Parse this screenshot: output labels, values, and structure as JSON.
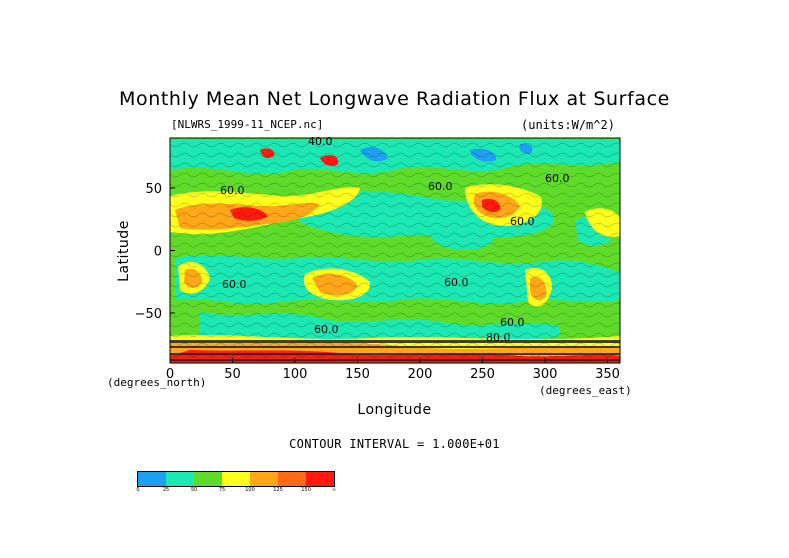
{
  "title": "Monthly Mean Net Longwave Radiation Flux at Surface",
  "file_label": "[NLWRS_1999-11_NCEP.nc]",
  "units_label": "(units:W/m^2)",
  "x_axis": {
    "label": "Longitude",
    "units_text": "(degrees_east)",
    "ticks": [
      "0",
      "50",
      "100",
      "150",
      "200",
      "250",
      "300",
      "350"
    ],
    "tick_values": [
      0,
      50,
      100,
      150,
      200,
      250,
      300,
      350
    ],
    "range": [
      0,
      360
    ]
  },
  "y_axis": {
    "label": "Latitude",
    "units_text": "(degrees_north)",
    "ticks": [
      "50",
      "0",
      "−50"
    ],
    "tick_values": [
      50,
      0,
      -50
    ],
    "range": [
      -90,
      90
    ]
  },
  "contour_interval_text": "CONTOUR INTERVAL = 1.000E+01",
  "contour_labels": [
    "40.0",
    "60.0",
    "60.0",
    "60.0",
    "60.0",
    "60.0",
    "60.0",
    "80.0",
    "60.0",
    "60.0"
  ],
  "legend": {
    "colors": [
      "#1e9ff0",
      "#1ce8b4",
      "#5fdc2a",
      "#ffff1e",
      "#ffa619",
      "#ff6a14",
      "#ff1a0f"
    ],
    "labels": [
      "0",
      "25",
      "50",
      "75",
      "100",
      "125",
      "150",
      "∞"
    ]
  },
  "map_colors": {
    "cyan": "#1ce8b4",
    "green": "#5fdc2a",
    "yellow": "#ffff1e",
    "orange": "#ffa619",
    "red": "#ff1a0f",
    "blue": "#1e9ff0"
  }
}
